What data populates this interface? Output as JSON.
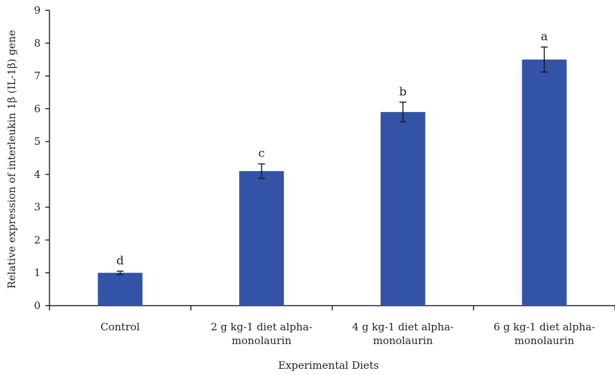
{
  "chart_data": {
    "type": "bar",
    "categories": [
      [
        "Control"
      ],
      [
        "2 g kg-1 diet alpha-",
        "monolaurin"
      ],
      [
        "4 g kg-1 diet alpha-",
        "monolaurin"
      ],
      [
        "6 g kg-1 diet alpha-",
        "monolaurin"
      ]
    ],
    "values": [
      1.0,
      4.1,
      5.9,
      7.5
    ],
    "errors": [
      0.05,
      0.22,
      0.3,
      0.38
    ],
    "letters": [
      "d",
      "c",
      "b",
      "a"
    ],
    "xlabel": "Experimental Diets",
    "ylabel": "Relative expression of interleukin 1β (IL-1β) gene",
    "ylim": [
      0,
      9
    ],
    "yticks": [
      0,
      1,
      2,
      3,
      4,
      5,
      6,
      7,
      8,
      9
    ],
    "grid": false,
    "colors": {
      "bar": "#3353a6",
      "axis": "#222222"
    }
  }
}
